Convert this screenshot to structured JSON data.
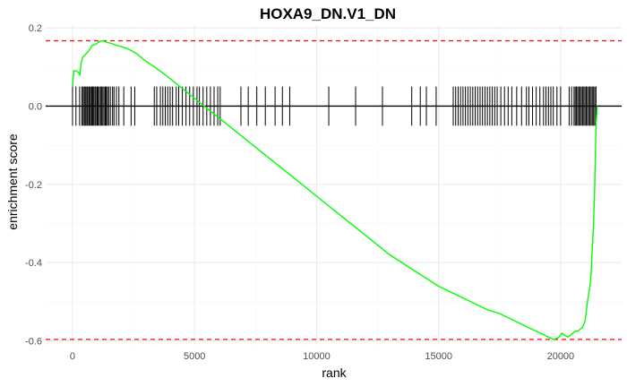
{
  "chart_data": {
    "type": "line",
    "title": "HOXA9_DN.V1_DN",
    "xlabel": "rank",
    "ylabel": "enrichment score",
    "xlim": [
      -1100,
      22500
    ],
    "ylim": [
      -0.61,
      0.207
    ],
    "x_ticks": [
      0,
      5000,
      10000,
      15000,
      20000
    ],
    "x_tick_labels": [
      "0",
      "5000",
      "10000",
      "15000",
      "20000"
    ],
    "y_ticks": [
      -0.6,
      -0.4,
      -0.2,
      0.0,
      0.2
    ],
    "y_tick_labels": [
      "-0.6",
      "-0.4",
      "-0.2",
      "0.0",
      "0.2"
    ],
    "grid": true,
    "legend": "none",
    "colors": {
      "curve": "#00ff00",
      "threshold": "#ff0000",
      "zero_line": "#000000",
      "ticks": "#000000",
      "grid_major": "#ebebeb",
      "grid_minor": "#f5f5f5"
    },
    "max_es": 0.167,
    "min_es": -0.596,
    "series": [
      {
        "x": [
          0,
          50,
          150,
          250,
          300,
          350,
          420,
          500,
          650,
          800,
          950,
          1100,
          1250,
          1400,
          1600,
          1800,
          2000,
          2200,
          2400,
          2600,
          2800,
          3000,
          3400,
          3800,
          4200,
          4600,
          5000,
          5400,
          5800,
          6200,
          7000,
          8000,
          9000,
          10000,
          11000,
          12000,
          13000,
          14000,
          15000,
          16000,
          16500,
          17000,
          17500,
          18000,
          18500,
          19000,
          19500,
          19700,
          19800,
          19900,
          20000,
          20050,
          20150,
          20300,
          20400,
          20600,
          20700,
          20800,
          20900,
          21000,
          21100,
          21150,
          21200,
          21250,
          21300,
          21350,
          21400,
          21450,
          21500
        ],
        "y": [
          0.05,
          0.09,
          0.09,
          0.085,
          0.08,
          0.11,
          0.125,
          0.13,
          0.14,
          0.155,
          0.158,
          0.165,
          0.167,
          0.163,
          0.16,
          0.155,
          0.152,
          0.148,
          0.142,
          0.135,
          0.125,
          0.115,
          0.098,
          0.08,
          0.06,
          0.04,
          0.02,
          0.0,
          -0.02,
          -0.04,
          -0.08,
          -0.13,
          -0.18,
          -0.23,
          -0.28,
          -0.33,
          -0.38,
          -0.42,
          -0.46,
          -0.49,
          -0.505,
          -0.52,
          -0.53,
          -0.545,
          -0.56,
          -0.575,
          -0.59,
          -0.596,
          -0.594,
          -0.592,
          -0.585,
          -0.58,
          -0.585,
          -0.59,
          -0.585,
          -0.575,
          -0.575,
          -0.57,
          -0.565,
          -0.55,
          -0.5,
          -0.48,
          -0.46,
          -0.43,
          -0.36,
          -0.3,
          -0.2,
          -0.05,
          0.0
        ]
      }
    ],
    "hit_ranks": [
      0,
      140,
      290,
      380,
      430,
      480,
      520,
      560,
      610,
      660,
      700,
      740,
      790,
      830,
      870,
      920,
      960,
      1010,
      1050,
      1100,
      1150,
      1190,
      1240,
      1290,
      1340,
      1380,
      1430,
      1480,
      1550,
      1640,
      1700,
      1800,
      1900,
      2100,
      2400,
      2550,
      3350,
      3450,
      3600,
      3700,
      3800,
      3900,
      4000,
      4100,
      4250,
      4350,
      4500,
      4650,
      4800,
      4950,
      5100,
      5200,
      5350,
      5500,
      5650,
      5800,
      5950,
      6050,
      6900,
      7200,
      7550,
      7900,
      8300,
      8600,
      8900,
      10500,
      11600,
      12700,
      13900,
      14250,
      14500,
      14900,
      15600,
      15700,
      15800,
      15900,
      16000,
      16100,
      16200,
      16300,
      16400,
      16500,
      16600,
      16700,
      16800,
      16900,
      17000,
      17100,
      17200,
      17300,
      17400,
      17550,
      17700,
      17850,
      18000,
      18200,
      18400,
      18600,
      18700,
      18850,
      19000,
      19150,
      19300,
      19400,
      19500,
      19600,
      19700,
      19850,
      20000,
      20350,
      20450,
      20550,
      20600,
      20650,
      20700,
      20750,
      20800,
      20850,
      20900,
      20950,
      21000,
      21050,
      21100,
      21150,
      21200,
      21250,
      21300,
      21350,
      21400,
      21450
    ]
  }
}
